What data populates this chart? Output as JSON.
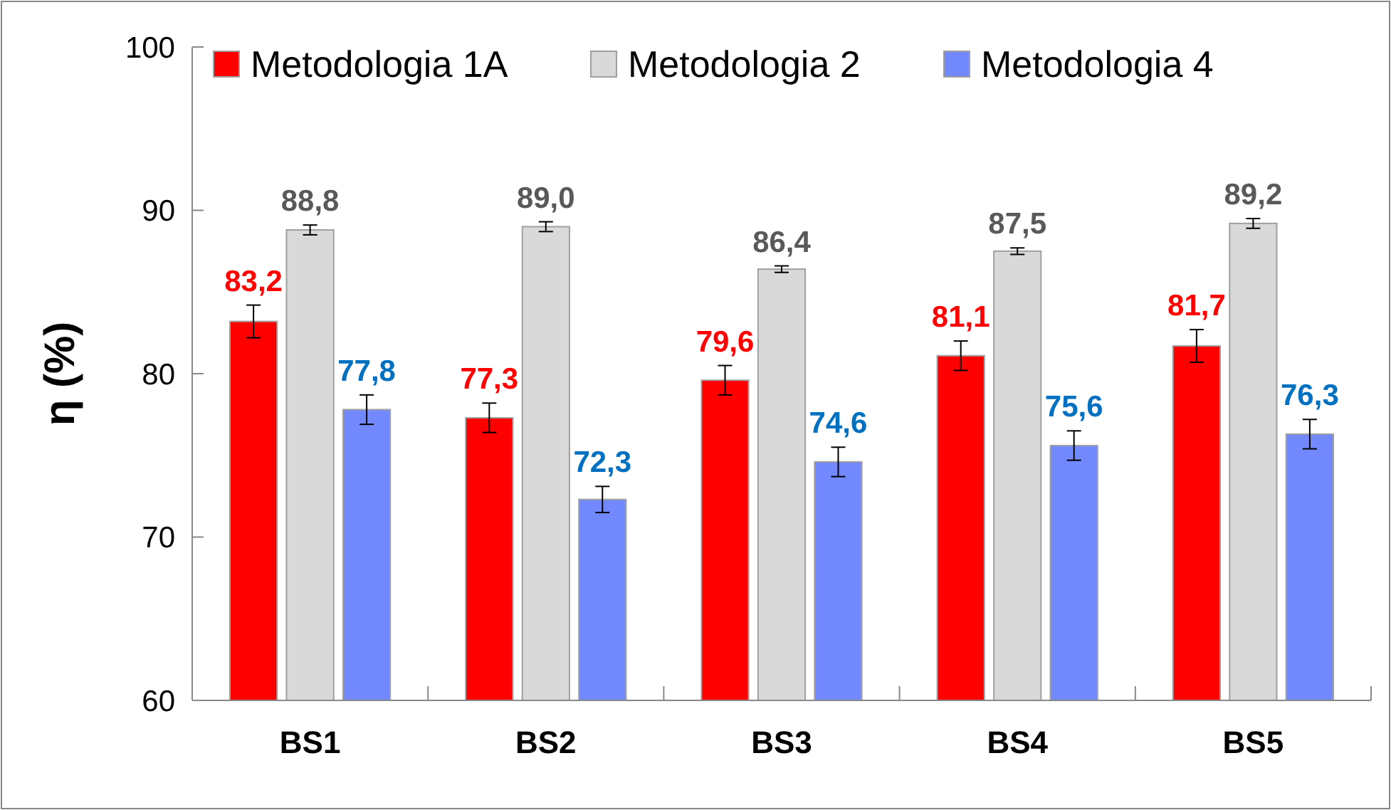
{
  "chart_data": {
    "type": "bar",
    "ylabel": "η (%)",
    "categories": [
      "BS1",
      "BS2",
      "BS3",
      "BS4",
      "BS5"
    ],
    "ylim": [
      60,
      100
    ],
    "yticks": [
      60,
      70,
      80,
      90,
      100
    ],
    "grid": false,
    "legend": "top left",
    "series": [
      {
        "name": "Metodologia 1A",
        "color": "#ff0000",
        "values": [
          83.2,
          77.3,
          79.6,
          81.1,
          81.7
        ],
        "errors": [
          1.0,
          0.9,
          0.9,
          0.9,
          1.0
        ],
        "value_labels": [
          "83,2",
          "77,3",
          "79,6",
          "81,1",
          "81,7"
        ]
      },
      {
        "name": "Metodologia 2",
        "color": "#d9d9d9",
        "values": [
          88.8,
          89.0,
          86.4,
          87.5,
          89.2
        ],
        "errors": [
          0.3,
          0.3,
          0.2,
          0.2,
          0.3
        ],
        "value_labels": [
          "88,8",
          "89,0",
          "86,4",
          "87,5",
          "89,2"
        ]
      },
      {
        "name": "Metodologia 4",
        "color": "#7289fe",
        "values": [
          77.8,
          72.3,
          74.6,
          75.6,
          76.3
        ],
        "errors": [
          0.9,
          0.8,
          0.9,
          0.9,
          0.9
        ],
        "value_labels": [
          "77,8",
          "72,3",
          "74,6",
          "75,6",
          "76,3"
        ]
      }
    ]
  }
}
